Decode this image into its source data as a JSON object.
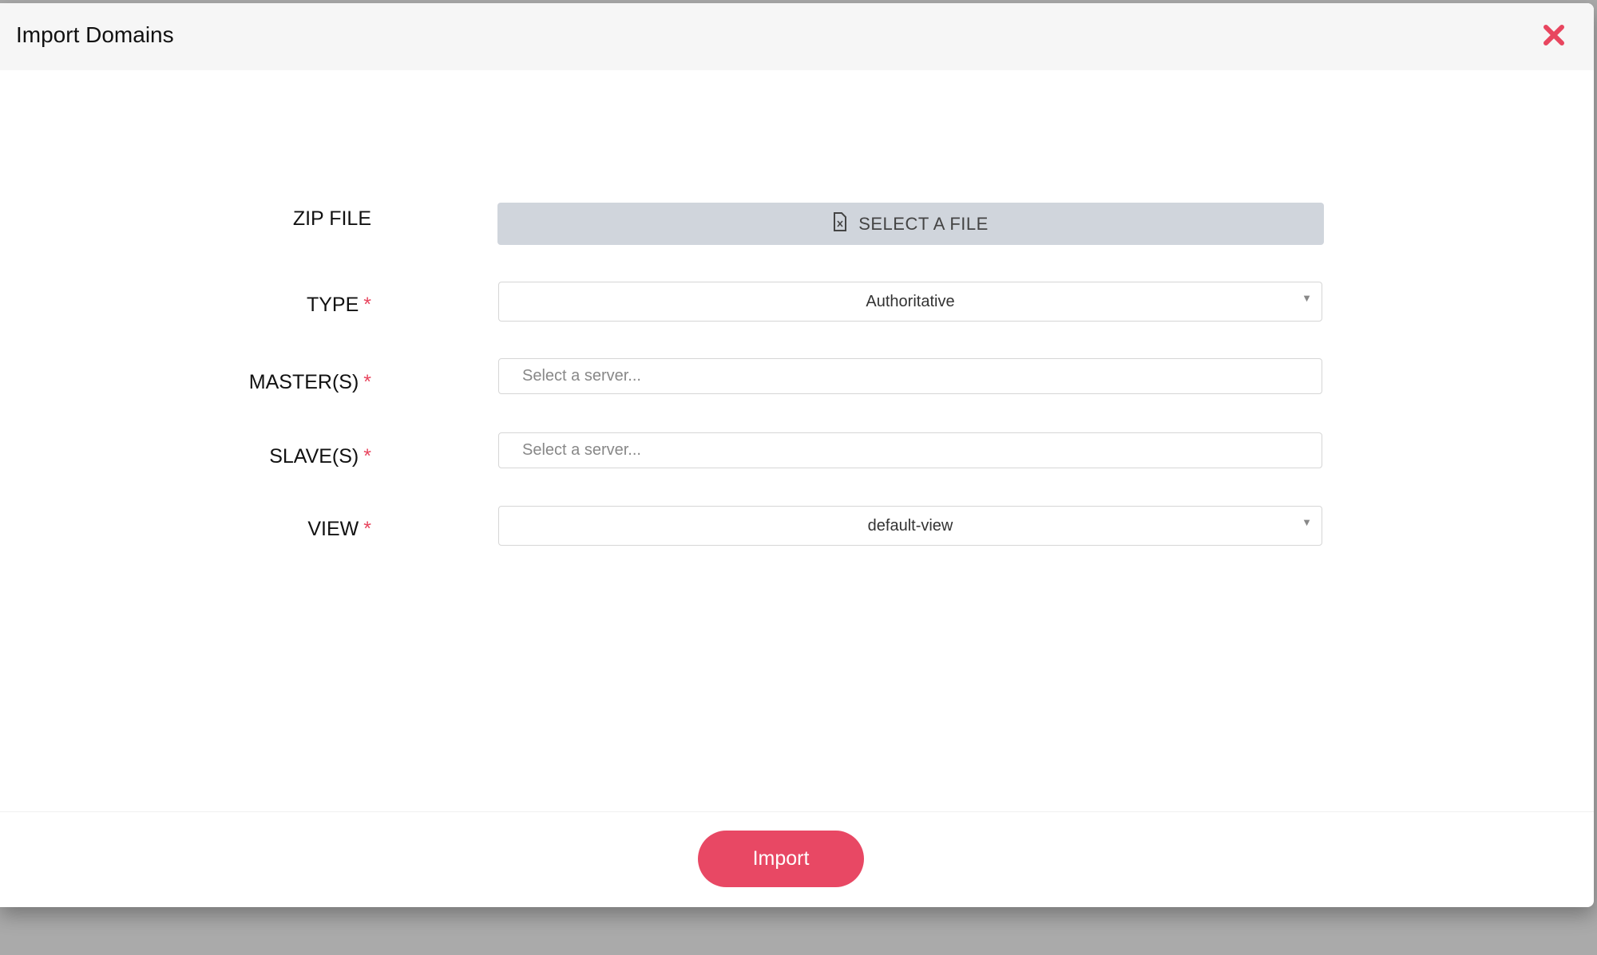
{
  "dialog": {
    "title": "Import Domains",
    "close_icon": "close-x-icon",
    "accent_color": "#e8465f"
  },
  "form": {
    "zip_file": {
      "label": "ZIP FILE",
      "button_label": "SELECT A FILE",
      "icon": "file-icon"
    },
    "type": {
      "label": "TYPE",
      "required": "*",
      "value": "Authoritative"
    },
    "masters": {
      "label": "MASTER(S)",
      "required": "*",
      "placeholder": "Select a server..."
    },
    "slaves": {
      "label": "SLAVE(S)",
      "required": "*",
      "placeholder": "Select a server..."
    },
    "view": {
      "label": "VIEW",
      "required": "*",
      "value": "default-view"
    }
  },
  "footer": {
    "import_label": "Import"
  }
}
